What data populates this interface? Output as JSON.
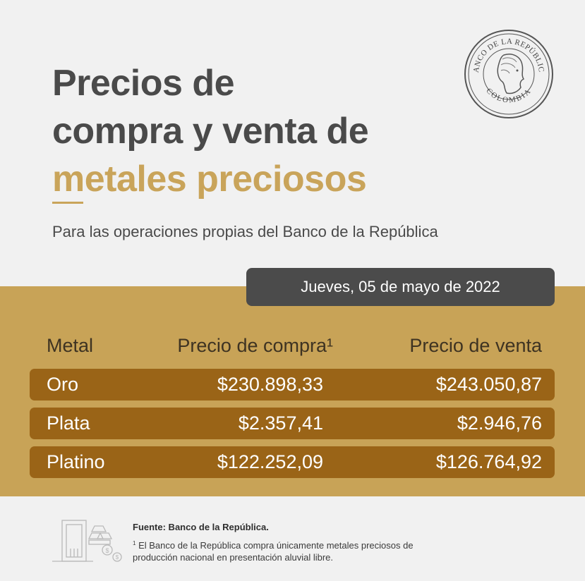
{
  "title": {
    "line1": "Precios de",
    "line2": "compra y venta de",
    "line3": "metales preciosos"
  },
  "subtitle": "Para las operaciones propias del Banco de la República",
  "seal": {
    "top_text": "BANCO DE LA REPÚBLICA",
    "bottom_text": "COLOMBIA"
  },
  "date": "Jueves, 05 de mayo de 2022",
  "table": {
    "headers": {
      "metal": "Metal",
      "compra": "Precio de compra¹",
      "venta": "Precio de venta"
    },
    "rows": [
      {
        "metal": "Oro",
        "compra": "$230.898,33",
        "venta": "$243.050,87"
      },
      {
        "metal": "Plata",
        "compra": "$2.357,41",
        "venta": "$2.946,76"
      },
      {
        "metal": "Platino",
        "compra": "$122.252,09",
        "venta": "$126.764,92"
      }
    ]
  },
  "footer": {
    "source": "Fuente: Banco de la República.",
    "note_marker": "1",
    "note_text": "El Banco de la República compra únicamente metales preciosos de producción nacional en presentación aluvial libre."
  },
  "colors": {
    "background": "#f1f1f1",
    "dark_text": "#4a4a4a",
    "gold": "#c9a45a",
    "band": "#c8a357",
    "row": "#9a6417",
    "pill": "#4b4b4b"
  }
}
